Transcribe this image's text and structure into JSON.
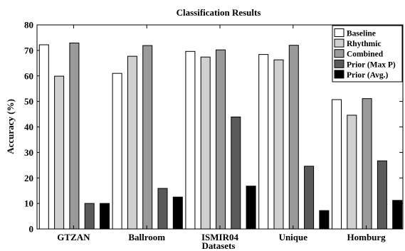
{
  "chart_data": {
    "type": "bar",
    "title": "Classification Results",
    "xlabel": "Datasets",
    "ylabel": "Accuracy (%)",
    "ylim": [
      0,
      80
    ],
    "yticks": [
      0,
      10,
      20,
      30,
      40,
      50,
      60,
      70,
      80
    ],
    "grid": false,
    "legend_position": "top-right",
    "categories": [
      "GTZAN",
      "Ballroom",
      "ISMIR04",
      "Unique",
      "Homburg"
    ],
    "series": [
      {
        "name": "Baseline",
        "color": "#ffffff",
        "values": [
          72.2,
          61.0,
          69.6,
          68.4,
          50.7
        ]
      },
      {
        "name": "Rhythmic",
        "color": "#d0d0d0",
        "values": [
          59.9,
          67.7,
          67.4,
          66.3,
          44.6
        ]
      },
      {
        "name": "Combined",
        "color": "#9a9a9a",
        "values": [
          72.9,
          71.9,
          70.2,
          72.0,
          51.1
        ]
      },
      {
        "name": "Prior (Max P)",
        "color": "#5a5a5a",
        "values": [
          10.0,
          15.9,
          43.9,
          24.6,
          26.7
        ]
      },
      {
        "name": "Prior (Avg.)",
        "color": "#000000",
        "values": [
          10.0,
          12.5,
          16.8,
          7.2,
          11.2
        ]
      }
    ]
  }
}
